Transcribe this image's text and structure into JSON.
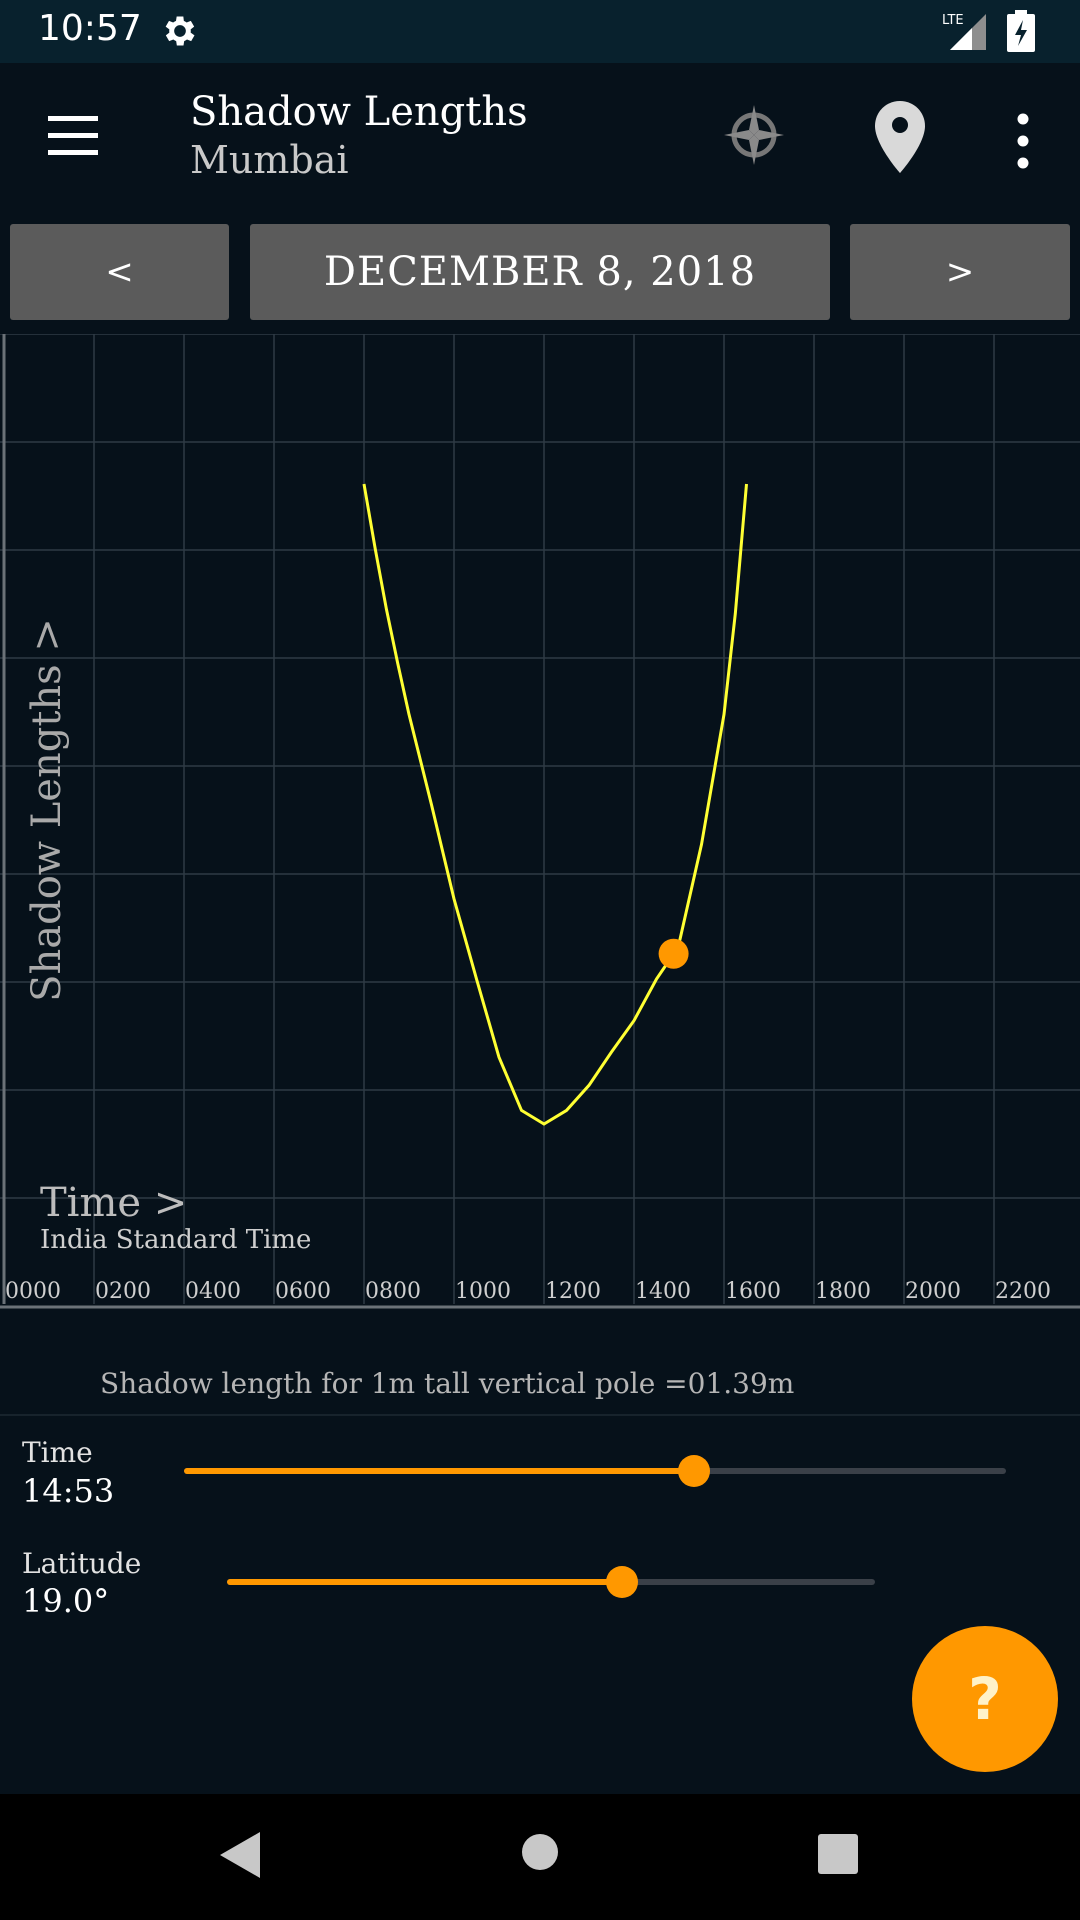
{
  "status_bar": {
    "time": "10:57",
    "network": "LTE",
    "icons": [
      "gear-icon",
      "lte-signal-icon",
      "battery-charging-icon"
    ]
  },
  "app_bar": {
    "title": "Shadow Lengths",
    "subtitle": "Mumbai",
    "icons": [
      "menu-icon",
      "gps-crosshair-icon",
      "location-pin-icon",
      "more-vert-icon"
    ]
  },
  "date_nav": {
    "prev_label": "<",
    "date_label": "DECEMBER 8, 2018",
    "next_label": ">"
  },
  "chart_data": {
    "type": "line",
    "ylabel": "Shadow Lengths >",
    "xlabel": "Time >",
    "xlabel_sub": "India Standard Time",
    "x_ticks": [
      "0000",
      "0200",
      "0400",
      "0600",
      "0800",
      "1000",
      "1200",
      "1400",
      "1600",
      "1800",
      "2000",
      "2200"
    ],
    "xlim": [
      0,
      24
    ],
    "grid": true,
    "line_color": "#ffff33",
    "marker_color": "#ff9800",
    "marker": {
      "time_hours": 14.88,
      "shadow_m": 1.39
    },
    "series": [
      {
        "x": [
          8.0,
          8.25,
          8.5,
          8.75,
          9.0,
          9.5,
          10.0,
          10.5,
          11.0,
          11.5,
          12.0,
          12.5,
          13.0,
          13.5,
          14.0,
          14.5,
          14.88,
          15.0,
          15.5,
          16.0,
          16.25,
          16.5
        ],
        "y": [
          10.0,
          7.6,
          5.9,
          4.7,
          3.8,
          2.6,
          1.75,
          1.25,
          0.9,
          0.72,
          0.68,
          0.72,
          0.8,
          0.92,
          1.05,
          1.25,
          1.39,
          1.45,
          2.2,
          3.8,
          5.8,
          10.0
        ]
      }
    ]
  },
  "info": {
    "shadow_text": "Shadow length for 1m tall vertical pole =01.39m"
  },
  "sliders": {
    "time": {
      "label": "Time",
      "value": "14:53",
      "fraction": 0.62
    },
    "latitude": {
      "label": "Latitude",
      "value": "19.0°",
      "fraction": 0.61
    }
  },
  "fab": {
    "label": "?"
  },
  "colors": {
    "accent": "#ff9800",
    "background": "#06111a",
    "button": "#5b5b5b"
  }
}
